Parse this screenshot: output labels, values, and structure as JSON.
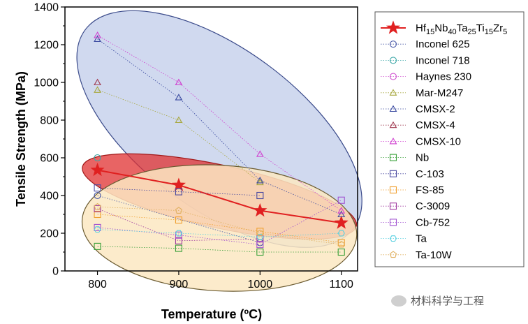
{
  "chart_data": {
    "type": "scatter",
    "xlabel": "Temperature (ºC)",
    "ylabel": "Tensile Strength (MPa)",
    "xlim": [
      760,
      1120
    ],
    "ylim": [
      0,
      1400
    ],
    "xticks": [
      800,
      900,
      1000,
      1100
    ],
    "yticks": [
      0,
      200,
      400,
      600,
      800,
      1000,
      1200,
      1400
    ],
    "legend_position": "right",
    "series": [
      {
        "name": "Hf15Nb40Ta25Ti15Zr5",
        "marker": "star",
        "color": "#e02020",
        "solid_line": true,
        "x": [
          800,
          900,
          1000,
          1100
        ],
        "y": [
          535,
          455,
          320,
          255
        ]
      },
      {
        "name": "Inconel 625",
        "marker": "circle",
        "color": "#4a5aa8",
        "x": [
          800,
          1000
        ],
        "y": [
          400,
          150
        ]
      },
      {
        "name": "Inconel 718",
        "marker": "circle",
        "color": "#3aa6a6",
        "x": [
          800
        ],
        "y": [
          600
        ]
      },
      {
        "name": "Haynes 230",
        "marker": "circle",
        "color": "#d050d0",
        "x": [],
        "y": []
      },
      {
        "name": "Mar-M247",
        "marker": "triangle",
        "color": "#a8a840",
        "x": [
          800,
          900,
          1000
        ],
        "y": [
          960,
          800,
          470
        ]
      },
      {
        "name": "CMSX-2",
        "marker": "triangle",
        "color": "#3a4aa0",
        "x": [
          800,
          900,
          1000,
          1100
        ],
        "y": [
          1230,
          920,
          480,
          300
        ]
      },
      {
        "name": "CMSX-4",
        "marker": "triangle",
        "color": "#a03a50",
        "x": [
          800
        ],
        "y": [
          1000
        ]
      },
      {
        "name": "CMSX-10",
        "marker": "triangle",
        "color": "#d040d0",
        "x": [
          800,
          900,
          1000,
          1100
        ],
        "y": [
          1250,
          1000,
          620,
          320
        ]
      },
      {
        "name": "Nb",
        "marker": "square",
        "color": "#3aa03a",
        "x": [
          800,
          900,
          1000,
          1100
        ],
        "y": [
          130,
          120,
          100,
          100
        ]
      },
      {
        "name": "C-103",
        "marker": "square",
        "color": "#4a4aa0",
        "x": [
          800,
          900,
          1000
        ],
        "y": [
          440,
          420,
          400
        ]
      },
      {
        "name": "FS-85",
        "marker": "square",
        "color": "#f0a030",
        "x": [
          800,
          900,
          1000,
          1100
        ],
        "y": [
          300,
          270,
          210,
          150
        ]
      },
      {
        "name": "C-3009",
        "marker": "square",
        "color": "#a03aa0",
        "x": [
          800,
          900,
          1000
        ],
        "y": [
          330,
          160,
          170
        ]
      },
      {
        "name": "Cb-752",
        "marker": "square",
        "color": "#a050d0",
        "x": [
          800,
          900,
          1000,
          1100
        ],
        "y": [
          230,
          190,
          140,
          375
        ]
      },
      {
        "name": "Ta",
        "marker": "hexagon",
        "color": "#5ad0e0",
        "x": [
          800,
          900,
          1000,
          1100
        ],
        "y": [
          220,
          200,
          180,
          200
        ]
      },
      {
        "name": "Ta-10W",
        "marker": "pentagon",
        "color": "#e0b060",
        "x": [
          800,
          900,
          1000,
          1100
        ],
        "y": [
          340,
          320,
          200,
          140
        ]
      }
    ]
  },
  "ellipses": [
    {
      "name": "superalloy-region",
      "fill": "#c8d2ec",
      "stroke": "#3a4a8a",
      "p1": [
        800,
        1230
      ],
      "p2": [
        1100,
        275
      ],
      "minor_half": 115
    },
    {
      "name": "hea-region",
      "fill": "#e03030",
      "stroke": "#a01818",
      "p1": [
        800,
        535
      ],
      "p2": [
        1100,
        255
      ],
      "minor_half": 45
    },
    {
      "name": "refractory-region",
      "fill": "#fbe8c2",
      "stroke": "#6a5a30",
      "p1": [
        800,
        265
      ],
      "p2": [
        1100,
        190
      ],
      "minor_half": 90
    }
  ],
  "legend_first": {
    "base": "Hf",
    "s1": "15",
    "t1": "Nb",
    "s2": "40",
    "t2": "Ta",
    "s3": "25",
    "t3": "Ti",
    "s4": "15",
    "t4": "Zr",
    "s5": "5"
  },
  "watermark": "材料科学与工程"
}
